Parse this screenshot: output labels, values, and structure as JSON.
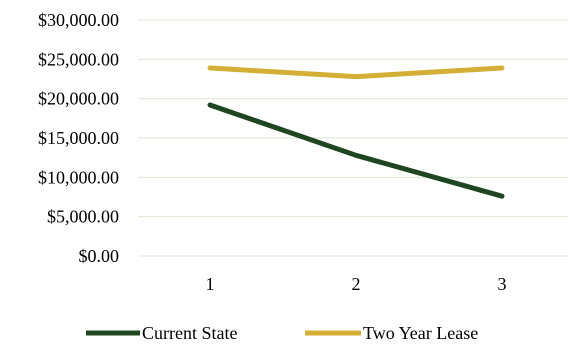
{
  "chart_data": {
    "type": "line",
    "title": "",
    "xlabel": "",
    "ylabel": "",
    "x": [
      "1",
      "2",
      "3"
    ],
    "ylim": [
      0,
      30000
    ],
    "yticks": [
      0,
      5000,
      10000,
      15000,
      20000,
      25000,
      30000
    ],
    "ytick_labels": [
      "$0.00",
      "$5,000.00",
      "$10,000.00",
      "$15,000.00",
      "$20,000.00",
      "$25,000.00",
      "$30,000.00"
    ],
    "grid": true,
    "legend": "bottom",
    "series": [
      {
        "name": "Current State",
        "values": [
          19200,
          12800,
          7600
        ],
        "color": "#1e4620"
      },
      {
        "name": "Two Year Lease",
        "values": [
          23900,
          22800,
          23900
        ],
        "color": "#d4af37"
      }
    ]
  }
}
